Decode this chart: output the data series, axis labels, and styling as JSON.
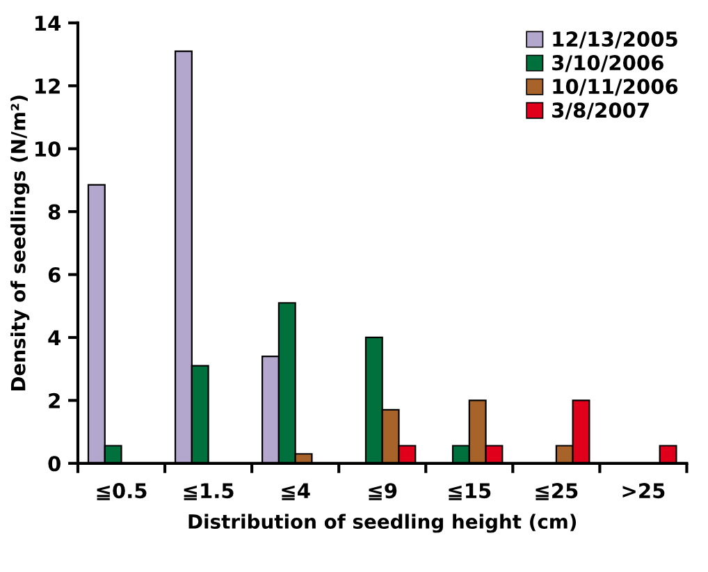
{
  "chart_data": {
    "type": "bar",
    "xlabel": "Distribution of seedling height (cm)",
    "ylabel": "Density of seedlings (N/m²)",
    "categories": [
      "≦0.5",
      "≦1.5",
      "≦4",
      "≦9",
      "≦15",
      "≦25",
      ">25"
    ],
    "series": [
      {
        "name": "12/13/2005",
        "color": "#b4a7cd",
        "values": [
          8.85,
          13.1,
          3.4,
          null,
          null,
          null,
          null
        ]
      },
      {
        "name": "3/10/2006",
        "color": "#00703c",
        "values": [
          0.56,
          3.1,
          5.1,
          4.0,
          0.56,
          null,
          null
        ]
      },
      {
        "name": "10/11/2006",
        "color": "#a8632a",
        "values": [
          null,
          null,
          0.3,
          1.7,
          2.0,
          0.56,
          null
        ]
      },
      {
        "name": "3/8/2007",
        "color": "#e0001b",
        "values": [
          null,
          null,
          null,
          0.56,
          0.56,
          2.0,
          0.56
        ]
      }
    ],
    "ylim": [
      0,
      14
    ],
    "yticks": [
      0,
      2,
      4,
      6,
      8,
      10,
      12,
      14
    ],
    "grid": false,
    "legend": "top right"
  }
}
